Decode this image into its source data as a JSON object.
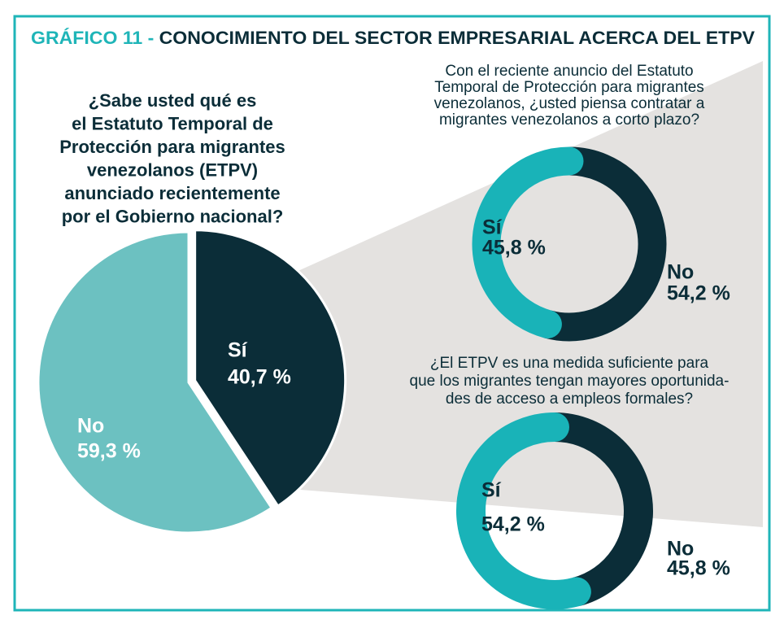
{
  "heading": {
    "number": "GRÁFICO 11 -",
    "text": "CONOCIMIENTO DEL SECTOR EMPRESARIAL ACERCA DEL ETPV"
  },
  "chart_data": [
    {
      "type": "pie",
      "title": [
        "¿Sabe usted qué es",
        "el Estatuto Temporal de",
        "Protección para migrantes",
        "venezolanos (ETPV)",
        "anunciado recientemente",
        "por el Gobierno nacional?"
      ],
      "categories": [
        "Sí",
        "No"
      ],
      "values": [
        40.7,
        59.3
      ],
      "value_labels": [
        "40,7 %",
        "59,3 %"
      ],
      "colors": [
        "#0b2d38",
        "#6cc1c1"
      ]
    },
    {
      "type": "donut",
      "title": [
        "Con el reciente anuncio del Estatuto",
        "Temporal de Protección para migrantes",
        "venezolanos, ¿usted piensa contratar a",
        "migrantes venezolanos a corto plazo?"
      ],
      "categories": [
        "Sí",
        "No"
      ],
      "values": [
        45.8,
        54.2
      ],
      "value_labels": [
        "45,8 %",
        "54,2 %"
      ],
      "colors": [
        "#19b3b8",
        "#0b2d38"
      ]
    },
    {
      "type": "donut",
      "title": [
        "¿El ETPV es una medida suficiente para",
        "que los migrantes tengan mayores oportunida-",
        "des de acceso a empleos formales?"
      ],
      "categories": [
        "Sí",
        "No"
      ],
      "values": [
        54.2,
        45.8
      ],
      "value_labels": [
        "54,2 %",
        "45,8 %"
      ],
      "colors": [
        "#19b3b8",
        "#0b2d38"
      ]
    }
  ]
}
